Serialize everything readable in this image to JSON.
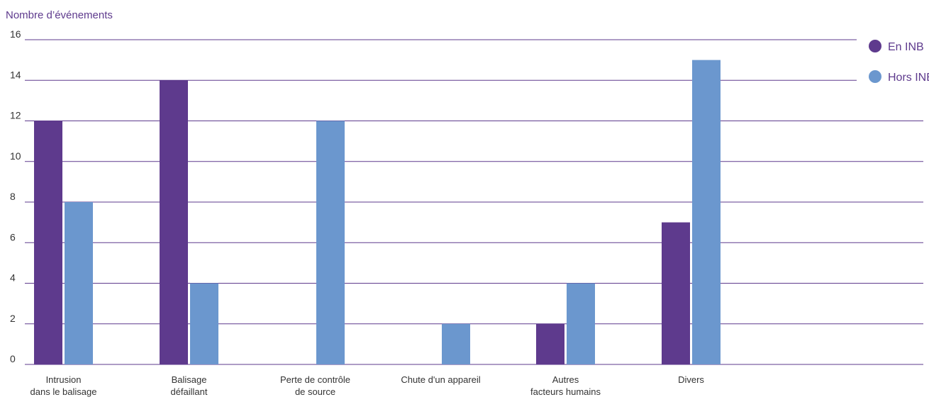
{
  "chart_data": {
    "type": "bar",
    "ylabel": "Nombre d’événements",
    "xlabel": "",
    "ylim": [
      0,
      16
    ],
    "yticks": [
      0,
      2,
      4,
      6,
      8,
      10,
      12,
      14,
      16
    ],
    "grid": true,
    "legend_position": "top-right",
    "categories": [
      [
        "Intrusion",
        "dans le balisage"
      ],
      [
        "Balisage",
        "défaillant"
      ],
      [
        "Perte de contrôle",
        "de source"
      ],
      [
        "Chute d'un appareil"
      ],
      [
        "Autres",
        "facteurs humains"
      ],
      [
        "Divers"
      ]
    ],
    "series": [
      {
        "name": "En INB",
        "color": "#5e3a8d",
        "values": [
          12,
          14,
          0,
          0,
          2,
          7
        ]
      },
      {
        "name": "Hors INB",
        "color": "#6b97ce",
        "values": [
          8,
          4,
          12,
          2,
          4,
          15
        ]
      }
    ],
    "gridline_color": "#5e3a8d"
  }
}
